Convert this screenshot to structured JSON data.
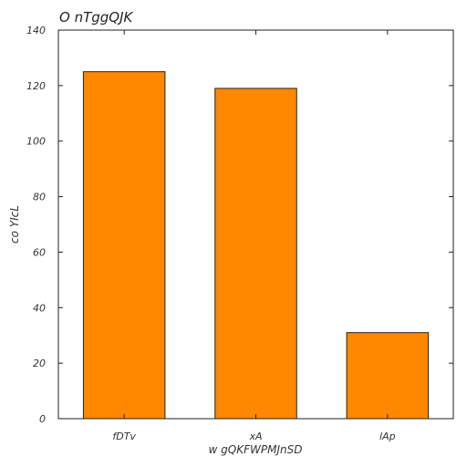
{
  "chart_data": {
    "type": "bar",
    "title": "O nTggQJK",
    "xlabel": "w gQKFWPMJnSD",
    "ylabel": "co YIcL",
    "categories": [
      "fDTv",
      "xA",
      "lAp"
    ],
    "values": [
      125,
      119,
      31
    ],
    "ylim": [
      0,
      140
    ],
    "yticks": [
      0,
      20,
      40,
      60,
      80,
      100,
      120,
      140
    ],
    "bar_color": "#ff8800",
    "edge_color": "#222222",
    "grid": false
  }
}
